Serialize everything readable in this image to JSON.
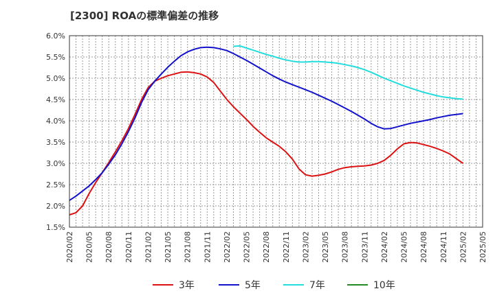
{
  "chart_data": {
    "type": "line",
    "title": "[2300]  ROAの標準偏差の推移",
    "xlabel": "",
    "ylabel": "",
    "ylim": [
      1.5,
      6.0
    ],
    "yticks": [
      "1.5%",
      "2.0%",
      "2.5%",
      "3.0%",
      "3.5%",
      "4.0%",
      "4.5%",
      "5.0%",
      "5.5%",
      "6.0%"
    ],
    "xticks": [
      "2020/02",
      "2020/05",
      "2020/08",
      "2020/11",
      "2021/02",
      "2021/05",
      "2021/08",
      "2021/11",
      "2022/02",
      "2022/05",
      "2022/08",
      "2022/11",
      "2023/02",
      "2023/05",
      "2023/08",
      "2023/11",
      "2024/02",
      "2024/05",
      "2024/08",
      "2024/11",
      "2025/02",
      "2025/05"
    ],
    "grid": true,
    "legend_position": "bottom",
    "series": [
      {
        "name": "3年",
        "color": "#dd1111",
        "x": [
          "2020/02",
          "2020/03",
          "2020/04",
          "2020/05",
          "2020/06",
          "2020/07",
          "2020/08",
          "2020/09",
          "2020/10",
          "2020/11",
          "2020/12",
          "2021/01",
          "2021/02",
          "2021/03",
          "2021/04",
          "2021/05",
          "2021/06",
          "2021/07",
          "2021/08",
          "2021/09",
          "2021/10",
          "2021/11",
          "2021/12",
          "2022/01",
          "2022/02",
          "2022/03",
          "2022/04",
          "2022/05",
          "2022/06",
          "2022/07",
          "2022/08",
          "2022/09",
          "2022/10",
          "2022/11",
          "2022/12",
          "2023/01",
          "2023/02",
          "2023/03",
          "2023/04",
          "2023/05",
          "2023/06",
          "2023/07",
          "2023/08",
          "2023/09",
          "2023/10",
          "2023/11",
          "2023/12",
          "2024/01",
          "2024/02",
          "2024/03",
          "2024/04",
          "2024/05",
          "2024/06",
          "2024/07",
          "2024/08",
          "2024/09",
          "2024/10",
          "2024/11",
          "2024/12",
          "2025/01",
          "2025/02"
        ],
        "values": [
          1.79,
          1.84,
          2.0,
          2.29,
          2.55,
          2.78,
          3.02,
          3.27,
          3.53,
          3.82,
          4.15,
          4.5,
          4.78,
          4.93,
          5.0,
          5.06,
          5.1,
          5.14,
          5.15,
          5.13,
          5.1,
          5.03,
          4.9,
          4.7,
          4.5,
          4.33,
          4.18,
          4.03,
          3.87,
          3.73,
          3.6,
          3.5,
          3.4,
          3.27,
          3.1,
          2.87,
          2.73,
          2.7,
          2.72,
          2.75,
          2.8,
          2.86,
          2.9,
          2.92,
          2.93,
          2.94,
          2.96,
          3.0,
          3.07,
          3.19,
          3.34,
          3.46,
          3.49,
          3.48,
          3.44,
          3.4,
          3.35,
          3.29,
          3.22,
          3.11,
          3.0
        ]
      },
      {
        "name": "5年",
        "color": "#1111cc",
        "x": [
          "2020/02",
          "2020/03",
          "2020/04",
          "2020/05",
          "2020/06",
          "2020/07",
          "2020/08",
          "2020/09",
          "2020/10",
          "2020/11",
          "2020/12",
          "2021/01",
          "2021/02",
          "2021/03",
          "2021/04",
          "2021/05",
          "2021/06",
          "2021/07",
          "2021/08",
          "2021/09",
          "2021/10",
          "2021/11",
          "2021/12",
          "2022/01",
          "2022/02",
          "2022/03",
          "2022/04",
          "2022/05",
          "2022/06",
          "2022/07",
          "2022/08",
          "2022/09",
          "2022/10",
          "2022/11",
          "2022/12",
          "2023/01",
          "2023/02",
          "2023/03",
          "2023/04",
          "2023/05",
          "2023/06",
          "2023/07",
          "2023/08",
          "2023/09",
          "2023/10",
          "2023/11",
          "2023/12",
          "2024/01",
          "2024/02",
          "2024/03",
          "2024/04",
          "2024/05",
          "2024/06",
          "2024/07",
          "2024/08",
          "2024/09",
          "2024/10",
          "2024/11",
          "2024/12",
          "2025/01",
          "2025/02"
        ],
        "values": [
          2.13,
          2.23,
          2.35,
          2.47,
          2.62,
          2.78,
          2.98,
          3.2,
          3.46,
          3.75,
          4.07,
          4.43,
          4.73,
          4.93,
          5.1,
          5.26,
          5.4,
          5.53,
          5.62,
          5.68,
          5.72,
          5.73,
          5.72,
          5.69,
          5.65,
          5.58,
          5.5,
          5.42,
          5.33,
          5.24,
          5.15,
          5.06,
          4.98,
          4.91,
          4.85,
          4.79,
          4.73,
          4.67,
          4.6,
          4.53,
          4.46,
          4.38,
          4.3,
          4.22,
          4.13,
          4.04,
          3.94,
          3.86,
          3.81,
          3.82,
          3.86,
          3.9,
          3.94,
          3.97,
          4.0,
          4.03,
          4.07,
          4.1,
          4.13,
          4.15,
          4.17
        ]
      },
      {
        "name": "7年",
        "color": "#22dddd",
        "x": [
          "2022/03",
          "2022/04",
          "2022/05",
          "2022/06",
          "2022/07",
          "2022/08",
          "2022/09",
          "2022/10",
          "2022/11",
          "2022/12",
          "2023/01",
          "2023/02",
          "2023/03",
          "2023/04",
          "2023/05",
          "2023/06",
          "2023/07",
          "2023/08",
          "2023/09",
          "2023/10",
          "2023/11",
          "2023/12",
          "2024/01",
          "2024/02",
          "2024/03",
          "2024/04",
          "2024/05",
          "2024/06",
          "2024/07",
          "2024/08",
          "2024/09",
          "2024/10",
          "2024/11",
          "2024/12",
          "2025/01",
          "2025/02"
        ],
        "values": [
          5.75,
          5.76,
          5.71,
          5.66,
          5.61,
          5.56,
          5.52,
          5.47,
          5.43,
          5.4,
          5.38,
          5.38,
          5.39,
          5.39,
          5.38,
          5.37,
          5.35,
          5.32,
          5.29,
          5.25,
          5.2,
          5.14,
          5.07,
          5.0,
          4.94,
          4.88,
          4.82,
          4.77,
          4.72,
          4.67,
          4.63,
          4.59,
          4.56,
          4.54,
          4.52,
          4.51
        ]
      },
      {
        "name": "10年",
        "color": "#228822",
        "x": [],
        "values": []
      }
    ]
  }
}
